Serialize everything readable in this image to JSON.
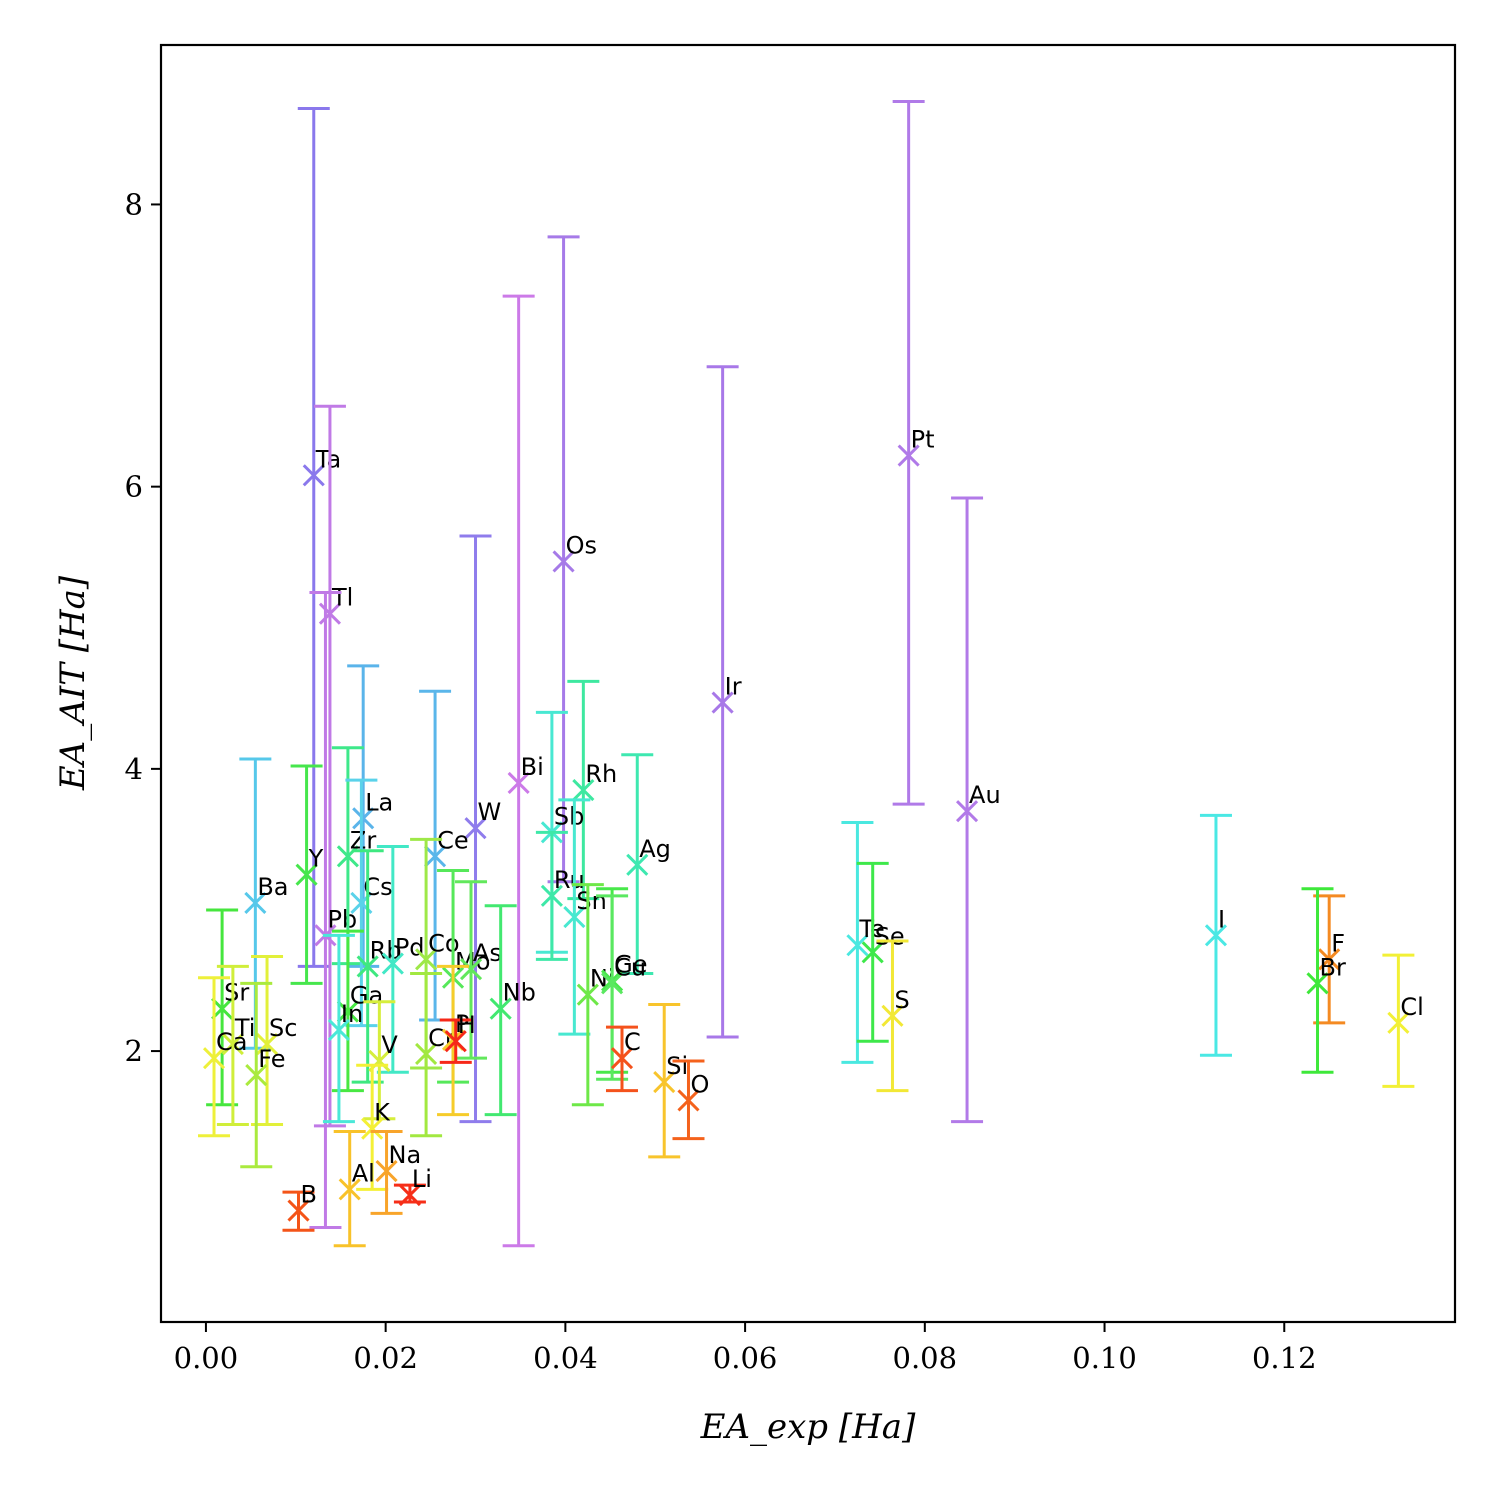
{
  "chart_data": {
    "type": "scatter",
    "xlabel": "EA_exp [Ha]",
    "ylabel": "EA_AIT [Ha]",
    "xlim": [
      -0.005,
      0.139
    ],
    "ylim": [
      0.08,
      9.13
    ],
    "xticks": [
      0.0,
      0.02,
      0.04,
      0.06,
      0.08,
      0.1,
      0.12
    ],
    "xtick_labels": [
      "0.00",
      "0.02",
      "0.04",
      "0.06",
      "0.08",
      "0.10",
      "0.12"
    ],
    "yticks": [
      2,
      4,
      6,
      8
    ],
    "ytick_labels": [
      "2",
      "4",
      "6",
      "8"
    ],
    "grid": false,
    "marker": "x with vertical error bars",
    "points": [
      {
        "label": "Ta",
        "x": 0.012,
        "y": 6.08,
        "err_lo": 2.6,
        "err_hi": 8.68,
        "color": "#8a78ec"
      },
      {
        "label": "Pt",
        "x": 0.0782,
        "y": 6.22,
        "err_lo": 3.75,
        "err_hi": 8.73,
        "color": "#b07ae8"
      },
      {
        "label": "Os",
        "x": 0.0398,
        "y": 5.47,
        "err_lo": 3.2,
        "err_hi": 7.77,
        "color": "#a67ae8"
      },
      {
        "label": "Tl",
        "x": 0.0138,
        "y": 5.1,
        "err_lo": 1.47,
        "err_hi": 6.57,
        "color": "#c07ae6"
      },
      {
        "label": "Ir",
        "x": 0.0575,
        "y": 4.47,
        "err_lo": 2.1,
        "err_hi": 6.85,
        "color": "#a878e8"
      },
      {
        "label": "Bi",
        "x": 0.0348,
        "y": 3.9,
        "err_lo": 0.62,
        "err_hi": 7.35,
        "color": "#cc7ae8"
      },
      {
        "label": "W",
        "x": 0.03,
        "y": 3.58,
        "err_lo": 1.5,
        "err_hi": 5.65,
        "color": "#8f7cec"
      },
      {
        "label": "Au",
        "x": 0.0847,
        "y": 3.7,
        "err_lo": 1.5,
        "err_hi": 5.92,
        "color": "#b27ae8"
      },
      {
        "label": "Pb",
        "x": 0.0133,
        "y": 2.82,
        "err_lo": 0.75,
        "err_hi": 5.25,
        "color": "#c07ae6"
      },
      {
        "label": "La",
        "x": 0.0175,
        "y": 3.65,
        "err_lo": 2.6,
        "err_hi": 4.73,
        "color": "#5ab4ea"
      },
      {
        "label": "Ce",
        "x": 0.0255,
        "y": 3.38,
        "err_lo": 2.22,
        "err_hi": 4.55,
        "color": "#5ab6ea"
      },
      {
        "label": "Zr",
        "x": 0.0158,
        "y": 3.38,
        "err_lo": 2.62,
        "err_hi": 4.15,
        "color": "#3ee88a"
      },
      {
        "label": "Y",
        "x": 0.0112,
        "y": 3.25,
        "err_lo": 2.48,
        "err_hi": 4.02,
        "color": "#46e64c"
      },
      {
        "label": "Cs",
        "x": 0.0173,
        "y": 3.05,
        "err_lo": 2.18,
        "err_hi": 3.92,
        "color": "#5ad2ea"
      },
      {
        "label": "Ba",
        "x": 0.0055,
        "y": 3.05,
        "err_lo": 2.02,
        "err_hi": 4.07,
        "color": "#56c8ea"
      },
      {
        "label": "Rh",
        "x": 0.042,
        "y": 3.85,
        "err_lo": 3.08,
        "err_hi": 4.62,
        "color": "#3ee8a0"
      },
      {
        "label": "Sb",
        "x": 0.0385,
        "y": 3.55,
        "err_lo": 2.7,
        "err_hi": 4.4,
        "color": "#48e8d2"
      },
      {
        "label": "Ag",
        "x": 0.048,
        "y": 3.32,
        "err_lo": 2.55,
        "err_hi": 4.1,
        "color": "#3ee8b0"
      },
      {
        "label": "Ru",
        "x": 0.0385,
        "y": 3.1,
        "err_lo": 2.65,
        "err_hi": 3.55,
        "color": "#3ee8a8"
      },
      {
        "label": "Sn",
        "x": 0.041,
        "y": 2.95,
        "err_lo": 2.12,
        "err_hi": 3.78,
        "color": "#48e8d0"
      },
      {
        "label": "Rb",
        "x": 0.018,
        "y": 2.6,
        "err_lo": 1.78,
        "err_hi": 3.42,
        "color": "#3ee880"
      },
      {
        "label": "Pd",
        "x": 0.0208,
        "y": 2.62,
        "err_lo": 1.85,
        "err_hi": 3.45,
        "color": "#42e8c6"
      },
      {
        "label": "Co",
        "x": 0.0245,
        "y": 2.65,
        "err_lo": 1.88,
        "err_hi": 3.5,
        "color": "#9ee848"
      },
      {
        "label": "Mo",
        "x": 0.0275,
        "y": 2.52,
        "err_lo": 1.78,
        "err_hi": 3.28,
        "color": "#56e85a"
      },
      {
        "label": "As",
        "x": 0.0295,
        "y": 2.58,
        "err_lo": 1.95,
        "err_hi": 3.2,
        "color": "#62e85c"
      },
      {
        "label": "Nb",
        "x": 0.0328,
        "y": 2.3,
        "err_lo": 1.55,
        "err_hi": 3.03,
        "color": "#42e870"
      },
      {
        "label": "Te",
        "x": 0.0725,
        "y": 2.75,
        "err_lo": 1.92,
        "err_hi": 3.62,
        "color": "#4ae8e0"
      },
      {
        "label": "Se",
        "x": 0.0742,
        "y": 2.7,
        "err_lo": 2.07,
        "err_hi": 3.33,
        "color": "#3ee84a"
      },
      {
        "label": "I",
        "x": 0.1124,
        "y": 2.82,
        "err_lo": 1.97,
        "err_hi": 3.67,
        "color": "#4ae8e4"
      },
      {
        "label": "F",
        "x": 0.125,
        "y": 2.65,
        "err_lo": 2.2,
        "err_hi": 3.1,
        "color": "#f48a22"
      },
      {
        "label": "Br",
        "x": 0.1237,
        "y": 2.48,
        "err_lo": 1.85,
        "err_hi": 3.15,
        "color": "#3ee83a"
      },
      {
        "label": "Cl",
        "x": 0.1327,
        "y": 2.2,
        "err_lo": 1.75,
        "err_hi": 2.68,
        "color": "#f2f036"
      },
      {
        "label": "S",
        "x": 0.0764,
        "y": 2.25,
        "err_lo": 1.72,
        "err_hi": 2.78,
        "color": "#f2e836"
      },
      {
        "label": "Ni",
        "x": 0.0425,
        "y": 2.4,
        "err_lo": 1.62,
        "err_hi": 3.18,
        "color": "#6ee848"
      },
      {
        "label": "Ge",
        "x": 0.0452,
        "y": 2.5,
        "err_lo": 1.85,
        "err_hi": 3.15,
        "color": "#48e84a"
      },
      {
        "label": "Cu",
        "x": 0.0452,
        "y": 2.48,
        "err_lo": 1.8,
        "err_hi": 3.1,
        "color": "#5ae860"
      },
      {
        "label": "Sr",
        "x": 0.0018,
        "y": 2.3,
        "err_lo": 1.62,
        "err_hi": 3.0,
        "color": "#46e63e"
      },
      {
        "label": "Ti",
        "x": 0.003,
        "y": 2.05,
        "err_lo": 1.48,
        "err_hi": 2.6,
        "color": "#d0ee3a"
      },
      {
        "label": "Sc",
        "x": 0.0068,
        "y": 2.05,
        "err_lo": 1.48,
        "err_hi": 2.67,
        "color": "#e2f03a"
      },
      {
        "label": "Ca",
        "x": 0.0009,
        "y": 1.95,
        "err_lo": 1.4,
        "err_hi": 2.52,
        "color": "#eef03a"
      },
      {
        "label": "Fe",
        "x": 0.0056,
        "y": 1.83,
        "err_lo": 1.18,
        "err_hi": 2.48,
        "color": "#aaea3e"
      },
      {
        "label": "Ga",
        "x": 0.0158,
        "y": 2.28,
        "err_lo": 1.72,
        "err_hi": 2.85,
        "color": "#48e842"
      },
      {
        "label": "In",
        "x": 0.0148,
        "y": 2.15,
        "err_lo": 1.5,
        "err_hi": 2.82,
        "color": "#4ae8d8"
      },
      {
        "label": "V",
        "x": 0.0193,
        "y": 1.93,
        "err_lo": 1.52,
        "err_hi": 2.35,
        "color": "#d6ee3c"
      },
      {
        "label": "Cr",
        "x": 0.0245,
        "y": 1.98,
        "err_lo": 1.4,
        "err_hi": 2.55,
        "color": "#a2e840"
      },
      {
        "label": "P",
        "x": 0.0275,
        "y": 2.08,
        "err_lo": 1.55,
        "err_hi": 2.6,
        "color": "#f6cc2a"
      },
      {
        "label": "H",
        "x": 0.0278,
        "y": 2.07,
        "err_lo": 1.92,
        "err_hi": 2.22,
        "color": "#f62818"
      },
      {
        "label": "C",
        "x": 0.0463,
        "y": 1.95,
        "err_lo": 1.72,
        "err_hi": 2.17,
        "color": "#f4521c"
      },
      {
        "label": "Si",
        "x": 0.051,
        "y": 1.78,
        "err_lo": 1.25,
        "err_hi": 2.33,
        "color": "#f8c42c"
      },
      {
        "label": "O",
        "x": 0.0537,
        "y": 1.65,
        "err_lo": 1.38,
        "err_hi": 1.93,
        "color": "#f4621c"
      },
      {
        "label": "K",
        "x": 0.0185,
        "y": 1.45,
        "err_lo": 1.02,
        "err_hi": 1.9,
        "color": "#f4f036"
      },
      {
        "label": "Na",
        "x": 0.0201,
        "y": 1.15,
        "err_lo": 0.85,
        "err_hi": 1.43,
        "color": "#f8a42a"
      },
      {
        "label": "Al",
        "x": 0.016,
        "y": 1.02,
        "err_lo": 0.62,
        "err_hi": 1.43,
        "color": "#f8c22a"
      },
      {
        "label": "Li",
        "x": 0.0227,
        "y": 0.98,
        "err_lo": 0.93,
        "err_hi": 1.05,
        "color": "#f62e18"
      },
      {
        "label": "B",
        "x": 0.0103,
        "y": 0.87,
        "err_lo": 0.73,
        "err_hi": 1.0,
        "color": "#f45418"
      }
    ]
  }
}
